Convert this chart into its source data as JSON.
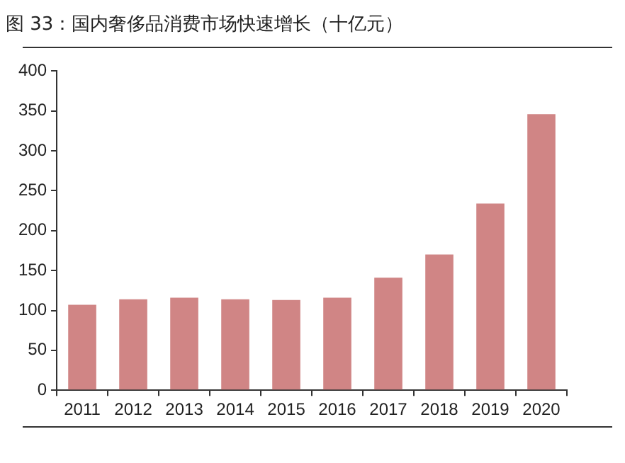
{
  "chart_data": {
    "type": "bar",
    "title": "图 33：国内奢侈品消费市场快速增长（十亿元）",
    "categories": [
      "2011",
      "2012",
      "2013",
      "2014",
      "2015",
      "2016",
      "2017",
      "2018",
      "2019",
      "2020"
    ],
    "values": [
      107,
      114,
      116,
      114,
      113,
      116,
      141,
      170,
      234,
      346
    ],
    "color": "#d08585",
    "ylim": [
      0,
      400
    ],
    "yticks": [
      0,
      50,
      100,
      150,
      200,
      250,
      300,
      350,
      400
    ],
    "grid": false,
    "legend": false
  }
}
